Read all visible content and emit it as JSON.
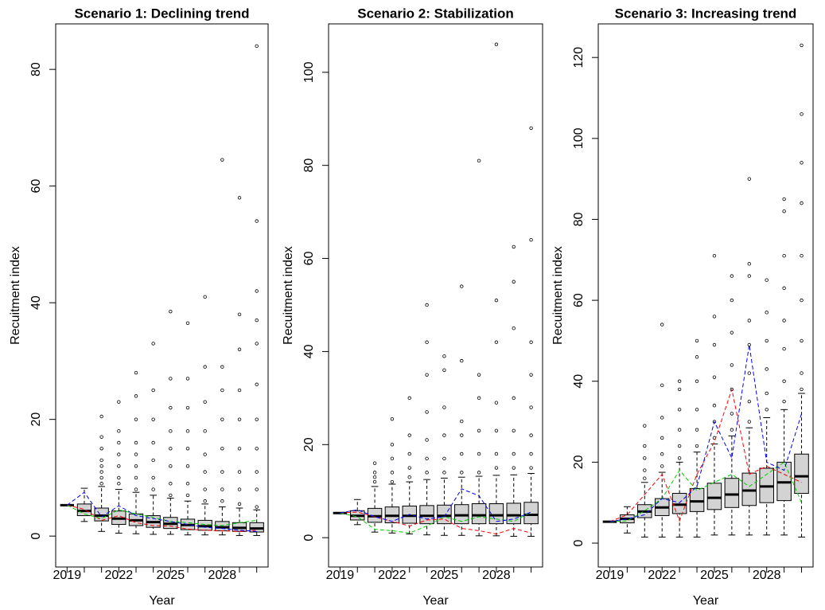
{
  "chart_data": [
    {
      "type": "boxplot",
      "title": "Scenario 1: Declining trend",
      "xlabel": "Year",
      "ylabel": "Recuitment index",
      "categories": [
        "2019",
        null,
        null,
        "2022",
        null,
        null,
        "2025",
        null,
        null,
        "2028",
        null,
        null
      ],
      "box_color": "#d3d3d3",
      "boxes": [
        {
          "min": 5.3,
          "q1": 5.3,
          "median": 5.3,
          "q3": 5.3,
          "max": 5.3,
          "outliers": []
        },
        {
          "min": 2.5,
          "q1": 3.5,
          "median": 4.3,
          "q3": 5.5,
          "max": 8.2,
          "outliers": []
        },
        {
          "min": 0.8,
          "q1": 2.6,
          "median": 3.5,
          "q3": 4.8,
          "max": 8.5,
          "outliers": [
            9,
            10,
            11,
            12,
            13,
            15,
            17,
            20.5
          ]
        },
        {
          "min": 0.5,
          "q1": 2.0,
          "median": 3.0,
          "q3": 4.3,
          "max": 8,
          "outliers": [
            9,
            10,
            12,
            14,
            16,
            18,
            23
          ]
        },
        {
          "min": 0.4,
          "q1": 1.8,
          "median": 2.7,
          "q3": 3.8,
          "max": 7.5,
          "outliers": [
            8,
            10,
            12,
            14,
            16,
            20,
            24,
            28
          ]
        },
        {
          "min": 0.3,
          "q1": 1.5,
          "median": 2.4,
          "q3": 3.5,
          "max": 7,
          "outliers": [
            8,
            10,
            13,
            16,
            20,
            25,
            33
          ]
        },
        {
          "min": 0.3,
          "q1": 1.3,
          "median": 2.1,
          "q3": 3.2,
          "max": 6.5,
          "outliers": [
            7,
            9,
            12,
            15,
            18,
            22,
            27,
            38.5
          ]
        },
        {
          "min": 0.2,
          "q1": 1.1,
          "median": 1.9,
          "q3": 2.9,
          "max": 6,
          "outliers": [
            7,
            9,
            12,
            15,
            18,
            22,
            27,
            36.5
          ]
        },
        {
          "min": 0.2,
          "q1": 1.0,
          "median": 1.7,
          "q3": 2.7,
          "max": 5.5,
          "outliers": [
            6,
            8,
            11,
            14,
            18,
            23,
            29,
            41
          ]
        },
        {
          "min": 0.2,
          "q1": 0.9,
          "median": 1.5,
          "q3": 2.5,
          "max": 5,
          "outliers": [
            6,
            8,
            11,
            15,
            20,
            25,
            29,
            64.5
          ]
        },
        {
          "min": 0.1,
          "q1": 0.8,
          "median": 1.4,
          "q3": 2.3,
          "max": 4.8,
          "outliers": [
            5.5,
            8,
            11,
            15,
            20,
            25,
            32,
            38,
            58
          ]
        },
        {
          "min": 0.1,
          "q1": 0.7,
          "median": 1.3,
          "q3": 2.3,
          "max": 4.5,
          "outliers": [
            5,
            8,
            11,
            15,
            20,
            26,
            33,
            37,
            42,
            54,
            84
          ]
        }
      ],
      "lines": [
        {
          "color": "#ff0000",
          "values": [
            5.3,
            4.6,
            2.7,
            3.5,
            2.3,
            1.8,
            1.7,
            1.2,
            1.0,
            0.9,
            0.8,
            1.0
          ]
        },
        {
          "color": "#00cc00",
          "values": [
            5.3,
            3.8,
            3.0,
            4.5,
            3.8,
            3.2,
            2.5,
            2.3,
            2.0,
            1.8,
            2.3,
            2.7
          ]
        },
        {
          "color": "#0000ff",
          "values": [
            5.3,
            7.5,
            3.3,
            5.2,
            3.5,
            3.0,
            2.5,
            2.0,
            1.5,
            1.3,
            1.0,
            0.8
          ]
        }
      ],
      "ylim": [
        -5.3,
        87.8
      ],
      "yticks": [
        0,
        20,
        40,
        60,
        80
      ]
    },
    {
      "type": "boxplot",
      "title": "Scenario 2: Stabilization",
      "xlabel": "Year",
      "ylabel": "Recuitment index",
      "categories": [
        "2019",
        null,
        null,
        "2022",
        null,
        null,
        "2025",
        null,
        null,
        "2028",
        null,
        null
      ],
      "box_color": "#d3d3d3",
      "boxes": [
        {
          "min": 5.3,
          "q1": 5.3,
          "median": 5.3,
          "q3": 5.3,
          "max": 5.3,
          "outliers": []
        },
        {
          "min": 2.8,
          "q1": 3.8,
          "median": 4.7,
          "q3": 5.8,
          "max": 8.2,
          "outliers": []
        },
        {
          "min": 1.2,
          "q1": 3.3,
          "median": 4.6,
          "q3": 6.3,
          "max": 11,
          "outliers": [
            12,
            13,
            14,
            16
          ]
        },
        {
          "min": 1,
          "q1": 3.2,
          "median": 4.7,
          "q3": 6.6,
          "max": 11.5,
          "outliers": [
            12,
            14,
            17,
            20,
            25.5
          ]
        },
        {
          "min": 0.8,
          "q1": 3.1,
          "median": 4.7,
          "q3": 6.8,
          "max": 12,
          "outliers": [
            13,
            15,
            18,
            22,
            30
          ]
        },
        {
          "min": 0.6,
          "q1": 3,
          "median": 4.7,
          "q3": 6.9,
          "max": 12.5,
          "outliers": [
            14,
            17,
            21,
            27,
            35,
            42,
            50
          ]
        },
        {
          "min": 0.5,
          "q1": 3,
          "median": 4.7,
          "q3": 7,
          "max": 12.8,
          "outliers": [
            14,
            17,
            22,
            28,
            36,
            39
          ]
        },
        {
          "min": 0.5,
          "q1": 3,
          "median": 4.8,
          "q3": 7.1,
          "max": 13,
          "outliers": [
            14,
            18,
            22,
            25,
            38,
            54
          ]
        },
        {
          "min": 0.4,
          "q1": 3,
          "median": 4.8,
          "q3": 7.3,
          "max": 13.2,
          "outliers": [
            14,
            18,
            23,
            30,
            35,
            81
          ]
        },
        {
          "min": 0.4,
          "q1": 3,
          "median": 4.8,
          "q3": 7.3,
          "max": 13.4,
          "outliers": [
            15,
            18,
            23,
            29,
            42,
            51,
            106
          ]
        },
        {
          "min": 0.3,
          "q1": 3,
          "median": 4.8,
          "q3": 7.4,
          "max": 13.5,
          "outliers": [
            15,
            18,
            23,
            30,
            45,
            55,
            62.5
          ]
        },
        {
          "min": 0.3,
          "q1": 3,
          "median": 4.9,
          "q3": 7.6,
          "max": 13.8,
          "outliers": [
            15,
            18,
            22,
            28,
            35,
            42,
            64,
            88
          ]
        }
      ],
      "lines": [
        {
          "color": "#ff0000",
          "values": [
            5.3,
            5.5,
            4.5,
            3.5,
            2.5,
            3.8,
            4,
            2,
            1.5,
            0.8,
            2,
            1
          ]
        },
        {
          "color": "#00cc00",
          "values": [
            5.3,
            4.5,
            1.8,
            1.5,
            1,
            2.5,
            4.5,
            3.5,
            4.5,
            4,
            3.5,
            5.5
          ]
        },
        {
          "color": "#0000ff",
          "values": [
            5.3,
            6,
            4.5,
            3.5,
            5,
            4,
            4.5,
            10.5,
            9,
            3.5,
            4,
            5.5
          ]
        }
      ],
      "ylim": [
        -6.3,
        110.4
      ],
      "yticks": [
        0,
        20,
        40,
        60,
        80,
        100
      ]
    },
    {
      "type": "boxplot",
      "title": "Scenario 3: Increasing trend",
      "xlabel": "Year",
      "ylabel": "Recuitment index",
      "categories": [
        "2019",
        null,
        null,
        "2022",
        null,
        null,
        "2025",
        null,
        null,
        "2028",
        null,
        null
      ],
      "box_color": "#d3d3d3",
      "boxes": [
        {
          "min": 5.3,
          "q1": 5.3,
          "median": 5.3,
          "q3": 5.3,
          "max": 5.3,
          "outliers": []
        },
        {
          "min": 2.5,
          "q1": 5,
          "median": 6,
          "q3": 7,
          "max": 9,
          "outliers": []
        },
        {
          "min": 1.5,
          "q1": 6.3,
          "median": 7.8,
          "q3": 9.5,
          "max": 15,
          "outliers": [
            16,
            18,
            21,
            24,
            29
          ]
        },
        {
          "min": 1.5,
          "q1": 6.8,
          "median": 8.8,
          "q3": 11,
          "max": 17.5,
          "outliers": [
            19,
            22,
            26,
            31,
            39,
            54
          ]
        },
        {
          "min": 1.5,
          "q1": 7.3,
          "median": 9.5,
          "q3": 12.3,
          "max": 20,
          "outliers": [
            21,
            24,
            28,
            33,
            38,
            40
          ]
        },
        {
          "min": 1.5,
          "q1": 7.8,
          "median": 10.3,
          "q3": 13.5,
          "max": 22.5,
          "outliers": [
            24,
            28,
            33,
            40,
            46,
            50
          ]
        },
        {
          "min": 2,
          "q1": 8.3,
          "median": 11.2,
          "q3": 14.8,
          "max": 24.5,
          "outliers": [
            26,
            30,
            34,
            41,
            49,
            56,
            71
          ]
        },
        {
          "min": 2,
          "q1": 8.8,
          "median": 12,
          "q3": 16,
          "max": 26.5,
          "outliers": [
            28,
            32,
            38,
            44,
            52,
            60,
            66
          ]
        },
        {
          "min": 2,
          "q1": 9.3,
          "median": 13,
          "q3": 17.3,
          "max": 28.5,
          "outliers": [
            30,
            35,
            42,
            49,
            55,
            66,
            69,
            90
          ]
        },
        {
          "min": 2,
          "q1": 10,
          "median": 14,
          "q3": 18.5,
          "max": 31,
          "outliers": [
            33,
            37,
            43,
            50,
            57,
            65
          ]
        },
        {
          "min": 2,
          "q1": 10.5,
          "median": 15,
          "q3": 20,
          "max": 33,
          "outliers": [
            35,
            40,
            48,
            55,
            63,
            71,
            82,
            85
          ]
        },
        {
          "min": 1.5,
          "q1": 12.3,
          "median": 16.5,
          "q3": 22,
          "max": 37,
          "outliers": [
            38,
            42,
            50,
            60,
            71,
            84,
            94,
            106,
            123
          ]
        }
      ],
      "lines": [
        {
          "color": "#ff0000",
          "values": [
            5.3,
            7,
            12,
            17,
            5.5,
            17,
            25,
            38,
            17,
            19,
            17,
            15
          ]
        },
        {
          "color": "#00cc00",
          "values": [
            5.3,
            5.5,
            8,
            11,
            18,
            13,
            15,
            17,
            14,
            17,
            20,
            10
          ]
        },
        {
          "color": "#0000ff",
          "values": [
            5.3,
            6,
            7,
            11,
            10,
            14,
            30,
            21,
            49,
            20,
            18,
            32
          ]
        }
      ],
      "ylim": [
        -5.9,
        128.3
      ],
      "yticks": [
        0,
        20,
        40,
        60,
        80,
        100,
        120
      ]
    }
  ]
}
